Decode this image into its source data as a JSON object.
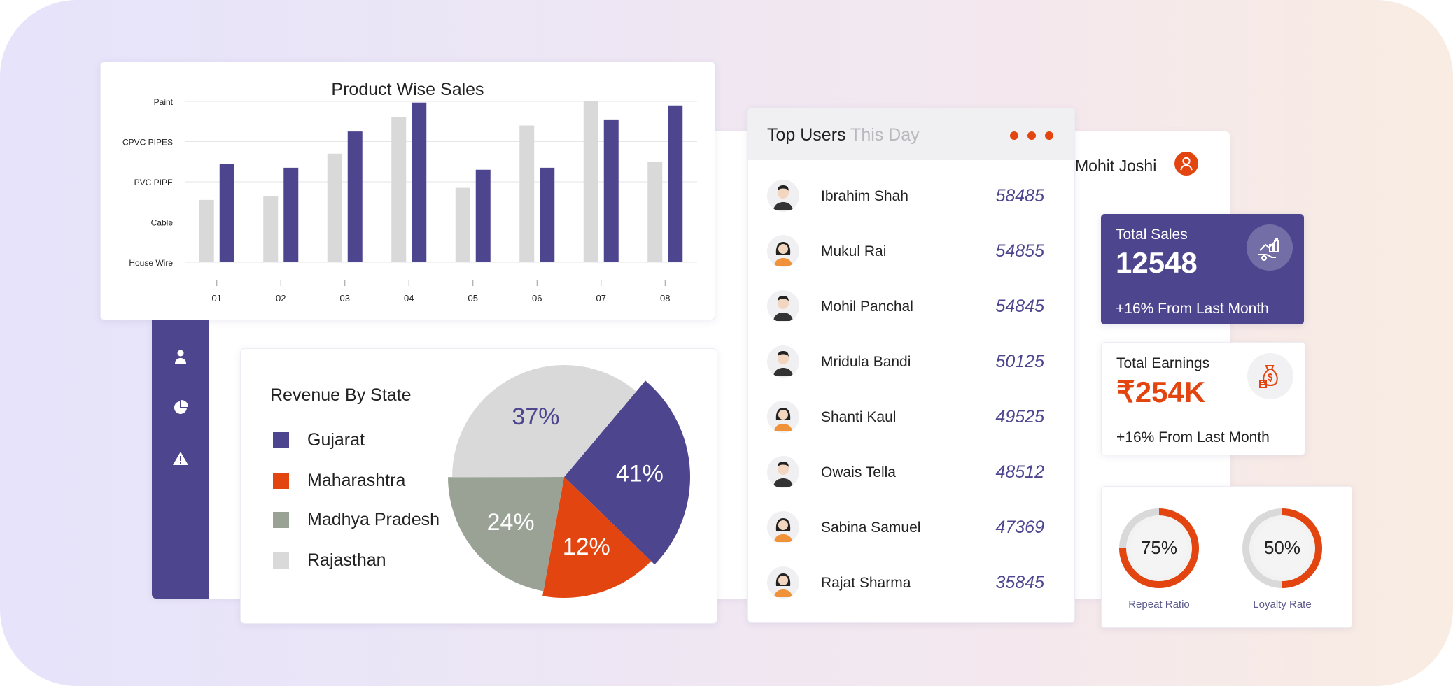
{
  "product_chart": {
    "title": "Product Wise Sales",
    "chart_data": {
      "type": "bar",
      "title": "Product Wise Sales",
      "categories": [
        "01",
        "02",
        "03",
        "04",
        "05",
        "06",
        "07",
        "08"
      ],
      "y_tick_labels": [
        "House Wire",
        "Cable",
        "PVC PIPE",
        "CPVC PIPES",
        "Paint"
      ],
      "ylim": [
        0,
        4
      ],
      "grid": true,
      "series": [
        {
          "color": "#d9d9d9",
          "values": [
            1.55,
            1.65,
            2.7,
            3.6,
            1.85,
            3.4,
            4.0,
            2.5
          ]
        },
        {
          "color": "#4d468f",
          "values": [
            2.45,
            2.35,
            3.25,
            3.97,
            2.3,
            2.35,
            3.55,
            3.9
          ]
        }
      ]
    }
  },
  "revenue": {
    "title": "Revenue By State",
    "legend": [
      {
        "label": "Gujarat",
        "color": "#4d468f"
      },
      {
        "label": "Maharashtra",
        "color": "#e34510"
      },
      {
        "label": "Madhya Pradesh",
        "color": "#9aa296"
      },
      {
        "label": "Rajasthan",
        "color": "#d9d9d9"
      }
    ],
    "chart_data": {
      "type": "pie",
      "title": "Revenue By State",
      "slices": [
        {
          "label": "Gujarat",
          "value": 41,
          "text": "41%",
          "color": "#4d468f"
        },
        {
          "label": "Maharashtra",
          "value": 12,
          "text": "12%",
          "color": "#e34510"
        },
        {
          "label": "Madhya Pradesh",
          "value": 24,
          "text": "24%",
          "color": "#9aa296"
        },
        {
          "label": "Rajasthan",
          "value": 37,
          "text": "37%",
          "color": "#d9d9d9"
        }
      ]
    }
  },
  "top_users": {
    "title": "Top Users",
    "title_muted": "This Day",
    "users": [
      {
        "name": "Ibrahim Shah",
        "score": "58485",
        "avatar": "male-avatar-icon"
      },
      {
        "name": "Mukul Rai",
        "score": "54855",
        "avatar": "female-avatar-icon"
      },
      {
        "name": "Mohil Panchal",
        "score": "54845",
        "avatar": "male-avatar-icon"
      },
      {
        "name": "Mridula Bandi",
        "score": "50125",
        "avatar": "male-avatar-icon"
      },
      {
        "name": "Shanti Kaul",
        "score": "49525",
        "avatar": "female-avatar-icon"
      },
      {
        "name": "Owais Tella",
        "score": "48512",
        "avatar": "male-avatar-icon"
      },
      {
        "name": "Sabina Samuel",
        "score": "47369",
        "avatar": "female-avatar-icon"
      },
      {
        "name": "Rajat Sharma",
        "score": "35845",
        "avatar": "female-avatar-icon"
      }
    ]
  },
  "profile": {
    "name": "Mohit Joshi",
    "avatar": "user-avatar-icon"
  },
  "stats": {
    "total_sales": {
      "label": "Total Sales",
      "value": "12548",
      "foot": "+16% From Last Month",
      "icon": "sales-growth-icon"
    },
    "total_earnings": {
      "label": "Total Earnings",
      "value": "₹254K",
      "foot": "+16% From Last Month",
      "icon": "money-bag-icon"
    }
  },
  "ratios": [
    {
      "label": "Repeat Ratio",
      "text": "75%",
      "value": 0.75
    },
    {
      "label": "Loyalty Rate",
      "text": "50%",
      "value": 0.5
    }
  ],
  "sidebar": {
    "icons": [
      "user-icon",
      "pie-chart-icon",
      "alert-icon"
    ]
  },
  "colors": {
    "primary": "#4d468f",
    "accent": "#e34510",
    "gray": "#d9d9d9",
    "sage": "#9aa296"
  }
}
